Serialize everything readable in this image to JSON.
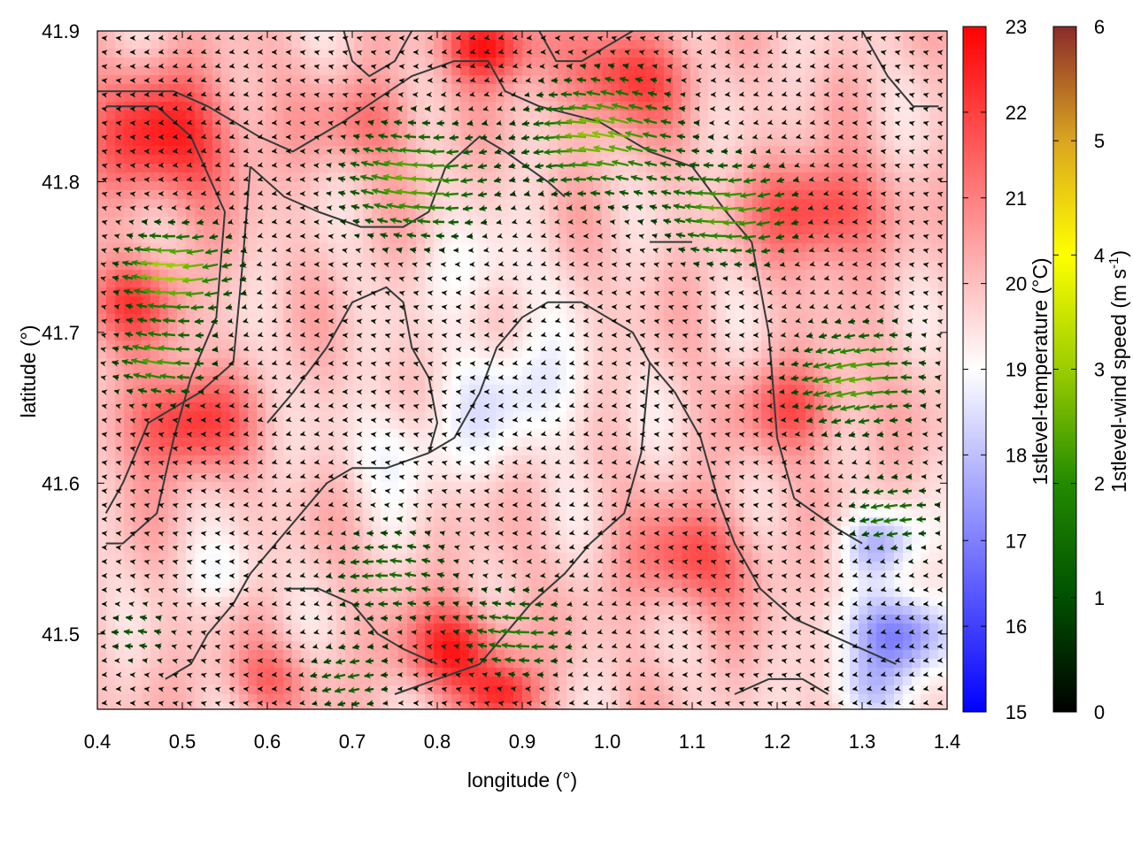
{
  "chart_data": {
    "type": "heatmap",
    "title": "",
    "xlabel": "longitude (°)",
    "ylabel": "latitude (°)",
    "xlim": [
      0.4,
      1.4
    ],
    "ylim": [
      41.45,
      41.9
    ],
    "x_ticks": [
      "0.4",
      "0.5",
      "0.6",
      "0.7",
      "0.8",
      "0.9",
      "1.0",
      "1.1",
      "1.2",
      "1.3",
      "1.4"
    ],
    "y_ticks": [
      "41.5",
      "41.6",
      "41.7",
      "41.8",
      "41.9"
    ],
    "grid": false,
    "temperature_scale": {
      "label": "1stlevel-temperature (°C)",
      "min": 15,
      "max": 23,
      "ticks": [
        "15",
        "16",
        "17",
        "18",
        "19",
        "20",
        "21",
        "22",
        "23"
      ],
      "colors": [
        "#0000ff",
        "#ffffff",
        "#ff0000"
      ]
    },
    "wind_scale": {
      "label_main": "1stlevel-wind speed (m s",
      "label_sup": "-1",
      "label_end": ")",
      "min": 0,
      "max": 6,
      "ticks": [
        "0",
        "1",
        "2",
        "3",
        "4",
        "5",
        "6"
      ],
      "colors": [
        "#000000",
        "#005000",
        "#228b00",
        "#9acd00",
        "#ffff00",
        "#daa520",
        "#8b2a2a"
      ]
    },
    "temperature_anomalies": [
      {
        "lon": 0.48,
        "lat": 41.83,
        "dT": 2.6,
        "r": 0.09
      },
      {
        "lon": 0.5,
        "lat": 41.64,
        "dT": 2.4,
        "r": 0.07
      },
      {
        "lon": 0.44,
        "lat": 41.72,
        "dT": 1.8,
        "r": 0.06
      },
      {
        "lon": 0.86,
        "lat": 41.89,
        "dT": 3.0,
        "r": 0.05
      },
      {
        "lon": 1.02,
        "lat": 41.87,
        "dT": 2.2,
        "r": 0.07
      },
      {
        "lon": 1.25,
        "lat": 41.78,
        "dT": 2.4,
        "r": 0.07
      },
      {
        "lon": 1.22,
        "lat": 41.65,
        "dT": 1.8,
        "r": 0.06
      },
      {
        "lon": 1.1,
        "lat": 41.55,
        "dT": 1.9,
        "r": 0.07
      },
      {
        "lon": 0.82,
        "lat": 41.49,
        "dT": 2.6,
        "r": 0.06
      },
      {
        "lon": 0.88,
        "lat": 41.46,
        "dT": 2.2,
        "r": 0.04
      },
      {
        "lon": 0.6,
        "lat": 41.47,
        "dT": 1.4,
        "r": 0.05
      },
      {
        "lon": 0.72,
        "lat": 41.84,
        "dT": 1.3,
        "r": 0.06
      },
      {
        "lon": 0.9,
        "lat": 41.66,
        "dT": -1.3,
        "r": 0.09
      },
      {
        "lon": 0.76,
        "lat": 41.62,
        "dT": -1.0,
        "r": 0.07
      },
      {
        "lon": 0.85,
        "lat": 41.74,
        "dT": -0.8,
        "r": 0.07
      },
      {
        "lon": 0.55,
        "lat": 41.54,
        "dT": -0.9,
        "r": 0.05
      },
      {
        "lon": 1.35,
        "lat": 41.5,
        "dT": -3.2,
        "r": 0.06
      },
      {
        "lon": 1.32,
        "lat": 41.56,
        "dT": -2.0,
        "r": 0.05
      },
      {
        "lon": 1.3,
        "lat": 41.46,
        "dT": -1.5,
        "r": 0.05
      }
    ],
    "wind_field": {
      "base_direction_deg": 180,
      "strong_zones": [
        {
          "lon": 0.5,
          "lat": 41.74,
          "speed": 3.0,
          "r": 0.06
        },
        {
          "lon": 0.48,
          "lat": 41.68,
          "speed": 2.2,
          "r": 0.05
        },
        {
          "lon": 0.78,
          "lat": 41.8,
          "speed": 2.4,
          "r": 0.08
        },
        {
          "lon": 1.0,
          "lat": 41.83,
          "speed": 2.7,
          "r": 0.08
        },
        {
          "lon": 1.15,
          "lat": 41.78,
          "speed": 2.3,
          "r": 0.07
        },
        {
          "lon": 1.3,
          "lat": 41.67,
          "speed": 2.4,
          "r": 0.07
        },
        {
          "lon": 1.34,
          "lat": 41.58,
          "speed": 1.6,
          "r": 0.05
        },
        {
          "lon": 0.75,
          "lat": 41.54,
          "speed": 1.4,
          "r": 0.07
        },
        {
          "lon": 0.9,
          "lat": 41.5,
          "speed": 1.7,
          "r": 0.06
        },
        {
          "lon": 0.7,
          "lat": 41.47,
          "speed": 1.3,
          "r": 0.05
        },
        {
          "lon": 0.45,
          "lat": 41.5,
          "speed": 1.0,
          "r": 0.04
        }
      ]
    },
    "contour_lines": [
      [
        [
          0.4,
          41.86
        ],
        [
          0.44,
          41.86
        ],
        [
          0.49,
          41.86
        ],
        [
          0.53,
          41.85
        ],
        [
          0.59,
          41.83
        ],
        [
          0.63,
          41.82
        ],
        [
          0.69,
          41.84
        ],
        [
          0.77,
          41.87
        ],
        [
          0.82,
          41.88
        ],
        [
          0.86,
          41.88
        ],
        [
          0.88,
          41.86
        ],
        [
          0.92,
          41.85
        ],
        [
          0.99,
          41.84
        ],
        [
          1.05,
          41.82
        ],
        [
          1.1,
          41.81
        ],
        [
          1.14,
          41.78
        ],
        [
          1.17,
          41.76
        ],
        [
          1.19,
          41.7
        ],
        [
          1.2,
          41.63
        ],
        [
          1.22,
          41.59
        ],
        [
          1.27,
          41.57
        ],
        [
          1.3,
          41.56
        ]
      ],
      [
        [
          0.41,
          41.85
        ],
        [
          0.47,
          41.85
        ],
        [
          0.51,
          41.83
        ],
        [
          0.55,
          41.78
        ],
        [
          0.54,
          41.71
        ],
        [
          0.51,
          41.67
        ],
        [
          0.49,
          41.63
        ],
        [
          0.47,
          41.58
        ],
        [
          0.43,
          41.56
        ],
        [
          0.41,
          41.56
        ]
      ],
      [
        [
          0.58,
          41.81
        ],
        [
          0.62,
          41.79
        ],
        [
          0.66,
          41.78
        ],
        [
          0.71,
          41.77
        ],
        [
          0.76,
          41.77
        ],
        [
          0.79,
          41.78
        ],
        [
          0.81,
          41.81
        ],
        [
          0.85,
          41.83
        ],
        [
          0.88,
          41.82
        ],
        [
          0.93,
          41.8
        ],
        [
          0.95,
          41.79
        ]
      ],
      [
        [
          0.58,
          41.81
        ],
        [
          0.57,
          41.74
        ],
        [
          0.56,
          41.68
        ],
        [
          0.52,
          41.66
        ],
        [
          0.49,
          41.65
        ],
        [
          0.46,
          41.64
        ],
        [
          0.43,
          41.6
        ],
        [
          0.41,
          41.58
        ]
      ],
      [
        [
          0.6,
          41.64
        ],
        [
          0.63,
          41.66
        ],
        [
          0.67,
          41.69
        ],
        [
          0.7,
          41.72
        ],
        [
          0.74,
          41.73
        ],
        [
          0.76,
          41.72
        ],
        [
          0.77,
          41.69
        ],
        [
          0.79,
          41.67
        ],
        [
          0.8,
          41.64
        ],
        [
          0.79,
          41.62
        ]
      ],
      [
        [
          0.79,
          41.62
        ],
        [
          0.74,
          41.61
        ],
        [
          0.7,
          41.61
        ],
        [
          0.67,
          41.6
        ],
        [
          0.64,
          41.58
        ],
        [
          0.61,
          41.56
        ],
        [
          0.58,
          41.54
        ],
        [
          0.56,
          41.52
        ],
        [
          0.53,
          41.5
        ],
        [
          0.51,
          41.48
        ],
        [
          0.48,
          41.47
        ]
      ],
      [
        [
          0.79,
          41.62
        ],
        [
          0.82,
          41.63
        ],
        [
          0.85,
          41.66
        ],
        [
          0.87,
          41.69
        ],
        [
          0.9,
          41.71
        ],
        [
          0.93,
          41.72
        ],
        [
          0.97,
          41.72
        ],
        [
          1.0,
          41.71
        ],
        [
          1.03,
          41.7
        ],
        [
          1.05,
          41.68
        ]
      ],
      [
        [
          1.05,
          41.68
        ],
        [
          1.04,
          41.62
        ],
        [
          1.02,
          41.58
        ],
        [
          0.98,
          41.56
        ],
        [
          0.95,
          41.54
        ],
        [
          0.91,
          41.52
        ],
        [
          0.88,
          41.5
        ],
        [
          0.85,
          41.48
        ],
        [
          0.8,
          41.47
        ],
        [
          0.75,
          41.46
        ]
      ],
      [
        [
          1.05,
          41.68
        ],
        [
          1.08,
          41.66
        ],
        [
          1.11,
          41.63
        ],
        [
          1.13,
          41.59
        ],
        [
          1.15,
          41.56
        ],
        [
          1.18,
          41.53
        ],
        [
          1.22,
          41.51
        ],
        [
          1.26,
          41.5
        ],
        [
          1.3,
          41.49
        ],
        [
          1.34,
          41.48
        ]
      ],
      [
        [
          0.69,
          41.9
        ],
        [
          0.7,
          41.88
        ],
        [
          0.72,
          41.87
        ],
        [
          0.75,
          41.88
        ],
        [
          0.77,
          41.9
        ]
      ],
      [
        [
          0.92,
          41.9
        ],
        [
          0.94,
          41.88
        ],
        [
          0.97,
          41.88
        ],
        [
          1.0,
          41.89
        ],
        [
          1.03,
          41.9
        ]
      ],
      [
        [
          1.3,
          41.9
        ],
        [
          1.33,
          41.87
        ],
        [
          1.36,
          41.85
        ],
        [
          1.39,
          41.85
        ]
      ],
      [
        [
          0.62,
          41.53
        ],
        [
          0.66,
          41.53
        ],
        [
          0.7,
          41.52
        ],
        [
          0.73,
          41.5
        ],
        [
          0.76,
          41.49
        ],
        [
          0.8,
          41.48
        ]
      ],
      [
        [
          1.15,
          41.46
        ],
        [
          1.19,
          41.47
        ],
        [
          1.23,
          41.47
        ],
        [
          1.26,
          41.46
        ]
      ],
      [
        [
          1.05,
          41.76
        ],
        [
          1.08,
          41.76
        ],
        [
          1.1,
          41.76
        ]
      ]
    ]
  }
}
